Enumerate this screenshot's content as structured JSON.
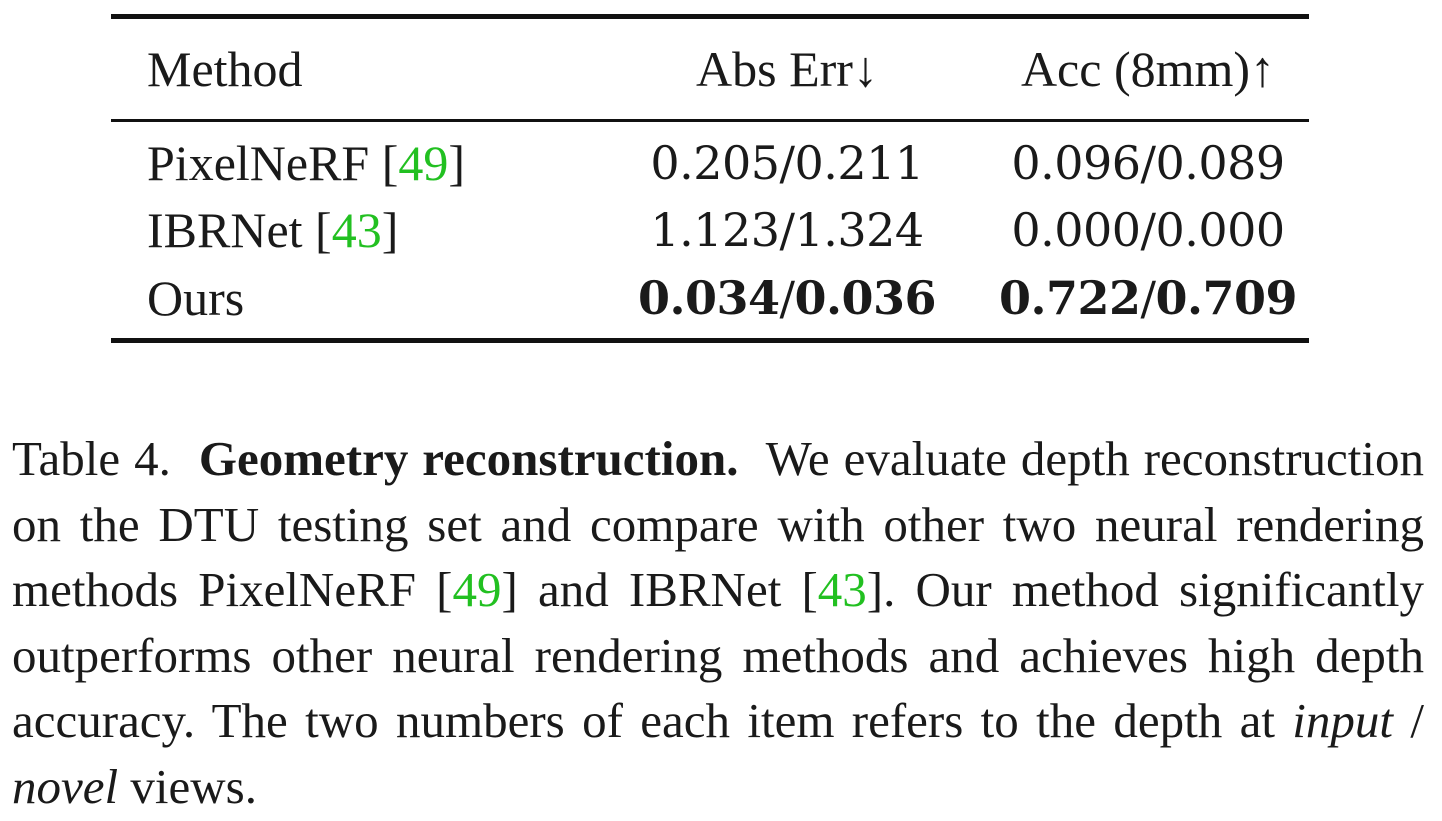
{
  "table": {
    "headers": [
      "Method",
      "Abs Err↓",
      "Acc (8mm)↑"
    ],
    "rows": [
      {
        "method": "PixelNeRF [",
        "cite": "49",
        "close": "]",
        "abs": "0.205/0.211",
        "acc": "0.096/0.089"
      },
      {
        "method": "IBRNet [",
        "cite": "43",
        "close": "]",
        "abs": "1.123/1.324",
        "acc": "0.000/0.000"
      },
      {
        "method": "Ours",
        "abs_a": "0.034",
        "abs_b": "0.036",
        "acc_a": "0.722",
        "acc_b": "0.709",
        "slash": "/"
      }
    ]
  },
  "caption": {
    "label": "Table 4.",
    "title": "Geometry reconstruction.",
    "text1": "We evaluate depth reconstruction on the DTU testing set and compare with other two neural rendering methods PixelNeRF [",
    "cite1": "49",
    "text2": "] and IBRNet [",
    "cite2": "43",
    "text3": "]. Our method significantly outperforms other neural rendering methods and achieves high depth accuracy. The two numbers of each item refers to the depth at ",
    "em1": "input",
    "sep": " / ",
    "em2": "novel",
    "text4": " views."
  },
  "colors": {
    "citation": "#22c021",
    "text": "#1a1a1a"
  }
}
